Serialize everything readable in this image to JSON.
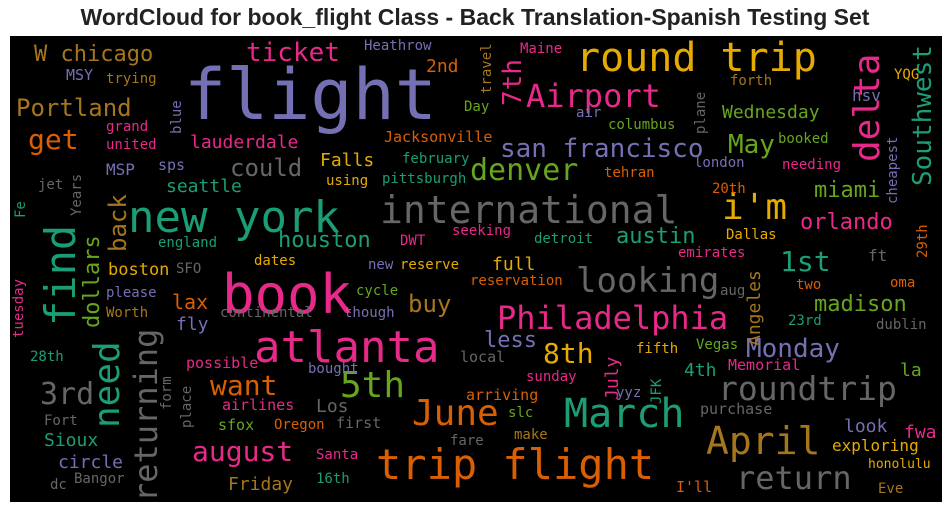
{
  "title": "WordCloud for book_flight Class - Back Translation-Spanish Testing Set",
  "palette": {
    "background": "#000000",
    "purple": "#7570b3",
    "teal": "#1b9e77",
    "orange": "#d95f02",
    "pink": "#e7298a",
    "green": "#66a61e",
    "gold": "#e6ab02",
    "brown": "#a6761d",
    "gray": "#666666"
  },
  "words": {
    "flight": "flight",
    "round_trip": "round trip",
    "book": "book",
    "new_york": "new york",
    "international": "international",
    "atlanta": "atlanta",
    "trip_flight": "trip flight",
    "march": "March",
    "april": "April",
    "june": "June",
    "delta": "delta",
    "airport": "Airport",
    "philadelphia": "Philadelphia",
    "looking": "looking",
    "denver": "denver",
    "san_francisco": "san francisco",
    "i_m": "i'm",
    "find": "find",
    "need": "need",
    "returning": "returning",
    "roundtrip": "roundtrip",
    "return": "return",
    "5th": "5th",
    "3rd": "3rd",
    "8th": "8th",
    "houston": "houston",
    "ticket": "ticket",
    "portland": "Portland",
    "w_chicago": "W chicago",
    "august": "august",
    "monday": "Monday",
    "want": "want",
    "get": "get",
    "could": "could",
    "1st": "1st",
    "7th": "7th",
    "may": "May",
    "southwest": "Southwest",
    "austin": "austin",
    "orlando": "orlando",
    "miami": "miami",
    "madison": "madison",
    "back": "back",
    "dollars": "dollars",
    "less": "less",
    "buy": "buy",
    "lax": "lax",
    "fly": "fly",
    "boston": "boston",
    "friday": "Friday",
    "sioux": "Sioux",
    "circle": "circle",
    "lauderdale": "lauderdale",
    "wednesday": "Wednesday",
    "seattle": "seattle",
    "falls": "Falls",
    "full": "full",
    "4th": "4th",
    "july": "July",
    "look": "look",
    "angeles": "Angeles",
    "los": "Los",
    "2nd": "2nd",
    "heathrow": "Heathrow",
    "maine": "Maine",
    "travel": "travel",
    "msy": "MSY",
    "trying": "trying",
    "day": "Day",
    "air": "air",
    "columbus": "columbus",
    "plane": "plane",
    "forth": "forth",
    "yqg": "YQG",
    "hsv": "hsv",
    "booked": "booked",
    "needing": "needing",
    "cheapest": "cheapest",
    "london": "london",
    "jacksonville": "Jacksonville",
    "february": "february",
    "pittsburgh": "pittsburgh",
    "tehran": "tehran",
    "grand": "grand",
    "united": "united",
    "blue": "blue",
    "msp": "MSP",
    "sps": "sps",
    "using": "using",
    "jet": "jet",
    "years": "Years",
    "fe": "Fe",
    "england": "england",
    "dwt": "DWT",
    "seeking": "seeking",
    "detroit": "detroit",
    "dallas": "Dallas",
    "20th": "20th",
    "29th": "29th",
    "ft": "ft",
    "oma": "oma",
    "two": "two",
    "dates": "dates",
    "new": "new",
    "reserve": "reserve",
    "emirates": "emirates",
    "sfo": "SFO",
    "reservation": "reservation",
    "aug": "aug",
    "please": "please",
    "cycle": "cycle",
    "tuesday": "tuesday",
    "worth": "Worth",
    "continental": "continental",
    "though": "though",
    "23rd": "23rd",
    "dublin": "dublin",
    "28th": "28th",
    "possible": "possible",
    "bought": "bought",
    "local": "local",
    "fifth": "fifth",
    "vegas": "Vegas",
    "memorial": "Memorial",
    "la": "la",
    "form": "form",
    "sunday": "sunday",
    "arriving": "arriving",
    "jfk": "JFK",
    "yyz": "yyz",
    "airlines": "airlines",
    "place": "place",
    "slc": "slc",
    "purchase": "purchase",
    "fwa": "fwa",
    "fort": "Fort",
    "sfox": "sfox",
    "oregon": "Oregon",
    "first": "first",
    "fare": "fare",
    "make": "make",
    "exploring": "exploring",
    "honolulu": "honolulu",
    "santa": "Santa",
    "bangor": "Bangor",
    "dc": "dc",
    "16th": "16th",
    "i_ll": "I'll",
    "eve": "Eve"
  }
}
